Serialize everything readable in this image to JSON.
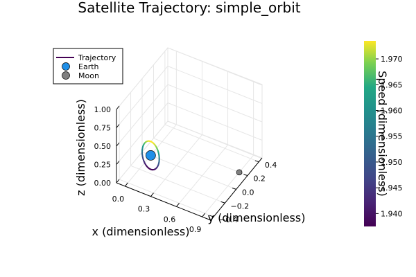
{
  "chart_data": {
    "type": "line",
    "subtype": "3d-trajectory",
    "title": "Satellite Trajectory: simple_orbit",
    "xlabel": "x (dimensionless)",
    "ylabel": "y (dimensionless)",
    "zlabel": "z (dimensionless)",
    "x_ticks": [
      "0.0",
      "0.3",
      "0.6",
      "0.9"
    ],
    "y_ticks": [
      "−0.4",
      "−0.2",
      "0.0",
      "0.2",
      "0.4"
    ],
    "z_ticks": [
      "0.00",
      "0.25",
      "0.50",
      "0.75",
      "1.00"
    ],
    "xlim": [
      -0.1,
      1.0
    ],
    "ylim": [
      -0.45,
      0.45
    ],
    "zlim": [
      0,
      1
    ],
    "legend_position": "top-left",
    "legend": [
      {
        "label": "Trajectory",
        "kind": "line",
        "color": "#440154"
      },
      {
        "label": "Earth",
        "kind": "marker",
        "color": "#1f8fe8"
      },
      {
        "label": "Moon",
        "kind": "marker",
        "color": "#7f7f7f"
      }
    ],
    "trajectory": {
      "name": "Trajectory",
      "center": [
        0,
        0,
        0
      ],
      "radius": 0.1,
      "speed_range": [
        1.9375,
        1.9735
      ]
    },
    "points": [
      {
        "name": "Earth",
        "x": 0,
        "y": 0,
        "z": 0,
        "color": "#1f8fe8"
      },
      {
        "name": "Moon",
        "x": 0.9,
        "y": 0.2,
        "z": 0,
        "color": "#7f7f7f"
      }
    ],
    "colorbar": {
      "label": "Speed (dimensionless)",
      "min": 1.9375,
      "max": 1.9735,
      "ticks": [
        "1.940",
        "1.945",
        "1.950",
        "1.955",
        "1.960",
        "1.965",
        "1.970"
      ],
      "tick_values": [
        1.94,
        1.945,
        1.95,
        1.955,
        1.96,
        1.965,
        1.97
      ],
      "colormap": "viridis"
    }
  }
}
